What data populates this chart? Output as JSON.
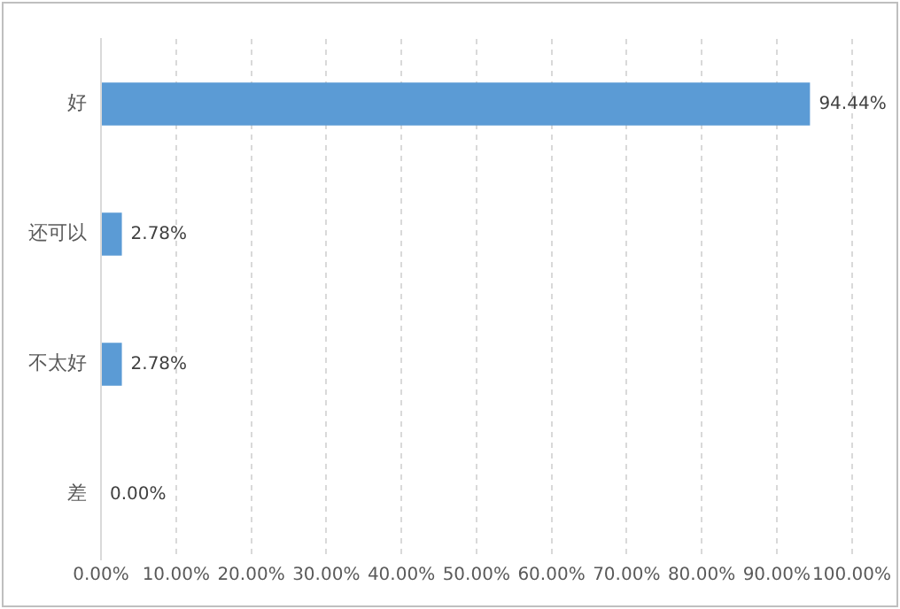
{
  "chart_data": {
    "type": "bar",
    "orientation": "horizontal",
    "categories": [
      "好",
      "还可以",
      "不太好",
      "差"
    ],
    "values": [
      94.44,
      2.78,
      2.78,
      0
    ],
    "color": "#5b9bd5",
    "value_labels": [
      "94.44%",
      "2.78%",
      "2.78%",
      "0.00%"
    ],
    "xlim": [
      0,
      100
    ],
    "xticks": [
      {
        "value": 0,
        "label": "0.00%"
      },
      {
        "value": 10,
        "label": "10.00%"
      },
      {
        "value": 20,
        "label": "20.00%"
      },
      {
        "value": 30,
        "label": "30.00%"
      },
      {
        "value": 40,
        "label": "40.00%"
      },
      {
        "value": 50,
        "label": "50.00%"
      },
      {
        "value": 60,
        "label": "60.00%"
      },
      {
        "value": 70,
        "label": "70.00%"
      },
      {
        "value": 80,
        "label": "80.00%"
      },
      {
        "value": 90,
        "label": "90.00%"
      },
      {
        "value": 100,
        "label": "100.00%"
      }
    ],
    "grid": "x",
    "legend": false
  }
}
